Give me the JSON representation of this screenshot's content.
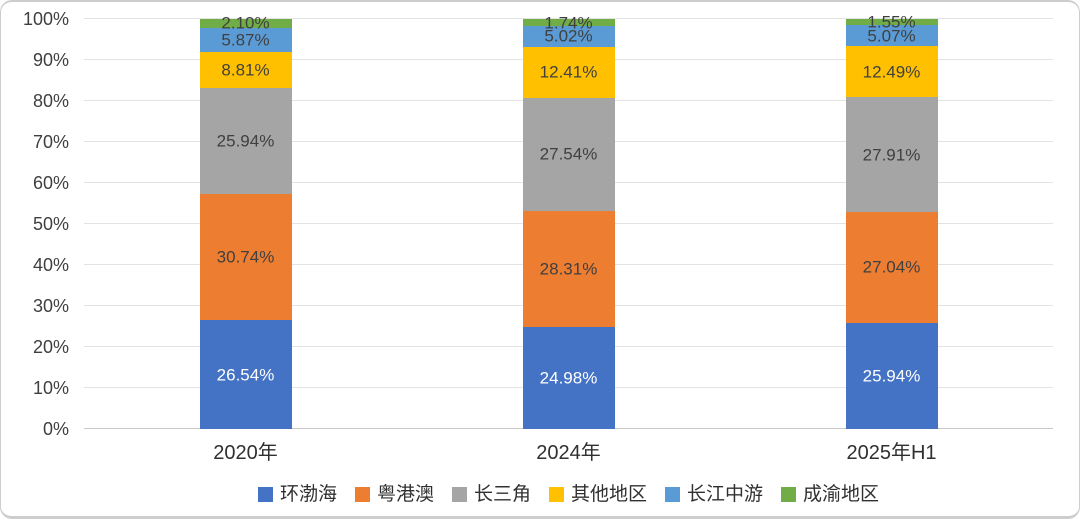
{
  "chart_data": {
    "type": "bar",
    "stacked": true,
    "percent_stacked": true,
    "categories": [
      "2020年",
      "2024年",
      "2025年H1"
    ],
    "series": [
      {
        "key": "bohai-rim",
        "name": "环渤海",
        "color": "#4472C4",
        "label_color": "#FFFFFF",
        "values": [
          26.54,
          24.98,
          25.94
        ],
        "labels": [
          "26.54%",
          "24.98%",
          "25.94%"
        ]
      },
      {
        "key": "greater-bay-area",
        "name": "粤港澳",
        "color": "#ED7D31",
        "label_color": "#404040",
        "values": [
          30.74,
          28.31,
          27.04
        ],
        "labels": [
          "30.74%",
          "28.31%",
          "27.04%"
        ]
      },
      {
        "key": "yangtze-river-delta",
        "name": "长三角",
        "color": "#A5A5A5",
        "label_color": "#404040",
        "values": [
          25.94,
          27.54,
          27.91
        ],
        "labels": [
          "25.94%",
          "27.54%",
          "27.91%"
        ]
      },
      {
        "key": "other-regions",
        "name": "其他地区",
        "color": "#FFC000",
        "label_color": "#404040",
        "values": [
          8.81,
          12.41,
          12.49
        ],
        "labels": [
          "8.81%",
          "12.41%",
          "12.49%"
        ]
      },
      {
        "key": "middle-yangtze",
        "name": "长江中游",
        "color": "#5B9BD5",
        "label_color": "#404040",
        "values": [
          5.87,
          5.02,
          5.07
        ],
        "labels": [
          "5.87%",
          "5.02%",
          "5.07%"
        ]
      },
      {
        "key": "chengdu-chongqing",
        "name": "成渝地区",
        "color": "#70AD47",
        "label_color": "#404040",
        "values": [
          2.1,
          1.74,
          1.55
        ],
        "labels": [
          "2.10%",
          "1.74%",
          "1.55%"
        ]
      }
    ],
    "y_ticks": [
      "0%",
      "10%",
      "20%",
      "30%",
      "40%",
      "50%",
      "60%",
      "70%",
      "80%",
      "90%",
      "100%"
    ],
    "ylim": [
      0,
      100
    ],
    "grid": true,
    "legend_position": "bottom"
  },
  "colors": {
    "gridline": "#E3E3E3",
    "axis_line": "#C9C9C9",
    "axis_text": "#3F3F3F",
    "category_text": "#303030",
    "card_border": "#CDCDCD"
  }
}
